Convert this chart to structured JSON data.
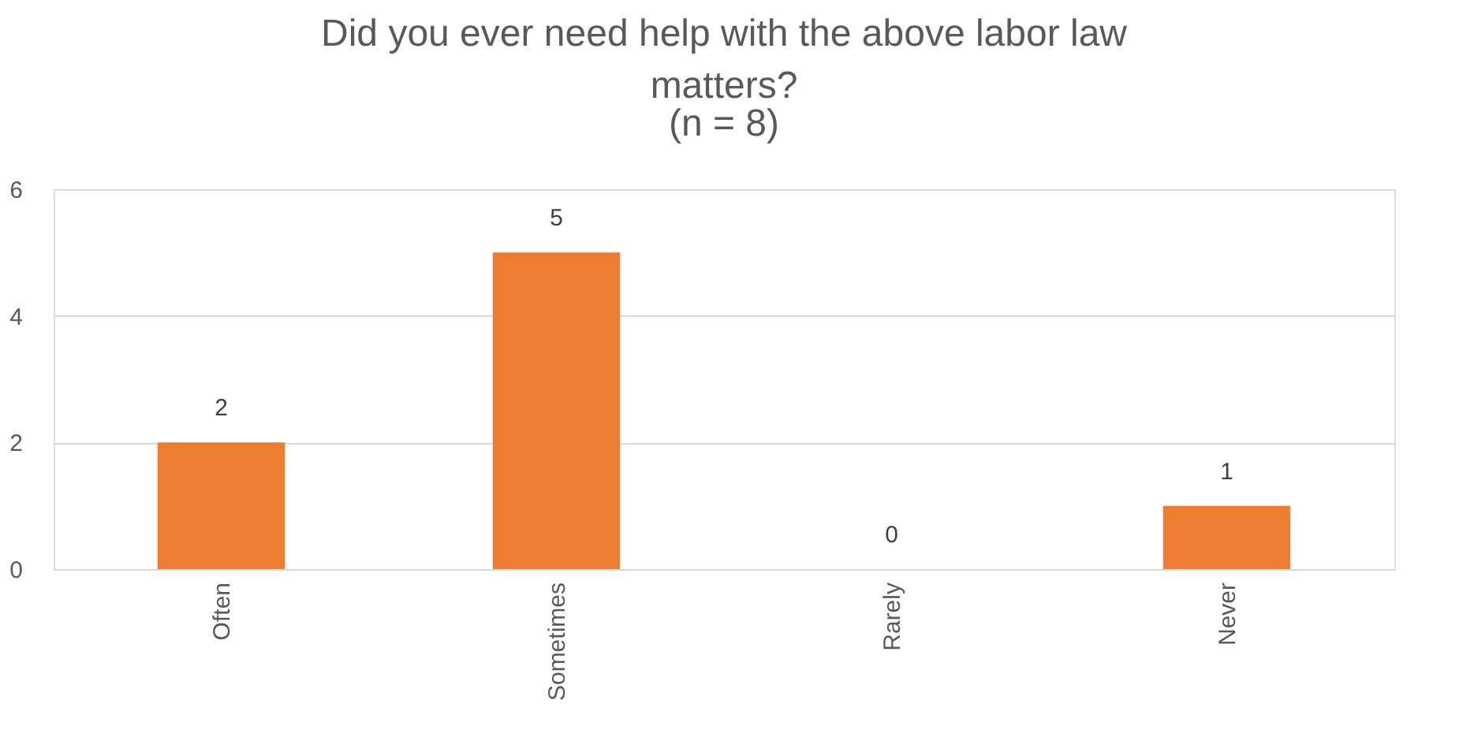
{
  "chart_data": {
    "type": "bar",
    "title": "Did you ever need help with the above labor law matters?",
    "subtitle": "(n = 8)",
    "categories": [
      "Often",
      "Sometimes",
      "Rarely",
      "Never"
    ],
    "values": [
      2,
      5,
      0,
      1
    ],
    "color": "#ed7d31",
    "ylim": [
      0,
      6
    ],
    "yticks": [
      0,
      2,
      4,
      6
    ],
    "grid": "y",
    "data_labels": true
  }
}
